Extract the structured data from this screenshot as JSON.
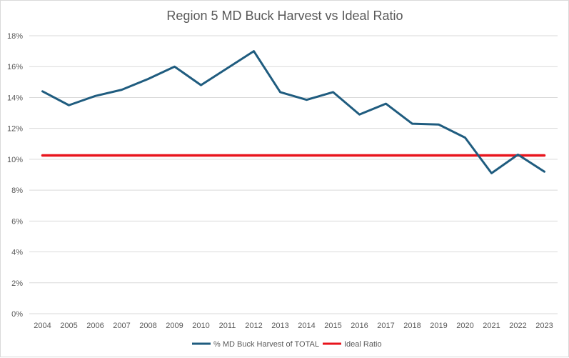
{
  "chart_data": {
    "type": "line",
    "title": "Region 5 MD Buck Harvest vs Ideal Ratio",
    "xlabel": "",
    "ylabel": "",
    "categories": [
      "2004",
      "2005",
      "2006",
      "2007",
      "2008",
      "2009",
      "2010",
      "2011",
      "2012",
      "2013",
      "2014",
      "2015",
      "2016",
      "2017",
      "2018",
      "2019",
      "2020",
      "2021",
      "2022",
      "2023"
    ],
    "ylim": [
      0,
      18
    ],
    "yticks": [
      0,
      2,
      4,
      6,
      8,
      10,
      12,
      14,
      16,
      18
    ],
    "ytick_labels": [
      "0%",
      "2%",
      "4%",
      "6%",
      "8%",
      "10%",
      "12%",
      "14%",
      "16%",
      "18%"
    ],
    "grid": true,
    "legend": "bottom",
    "series": [
      {
        "name": "% MD Buck Harvest of TOTAL",
        "color": "#1f5c7f",
        "values": [
          14.4,
          13.5,
          14.1,
          14.5,
          15.2,
          16.0,
          14.8,
          15.9,
          17.0,
          14.35,
          13.85,
          14.35,
          12.9,
          13.6,
          12.3,
          12.25,
          11.4,
          9.1,
          10.3,
          9.2
        ]
      },
      {
        "name": "Ideal Ratio",
        "color": "#e8141c",
        "values": [
          10.25,
          10.25,
          10.25,
          10.25,
          10.25,
          10.25,
          10.25,
          10.25,
          10.25,
          10.25,
          10.25,
          10.25,
          10.25,
          10.25,
          10.25,
          10.25,
          10.25,
          10.25,
          10.25,
          10.25
        ]
      }
    ]
  }
}
